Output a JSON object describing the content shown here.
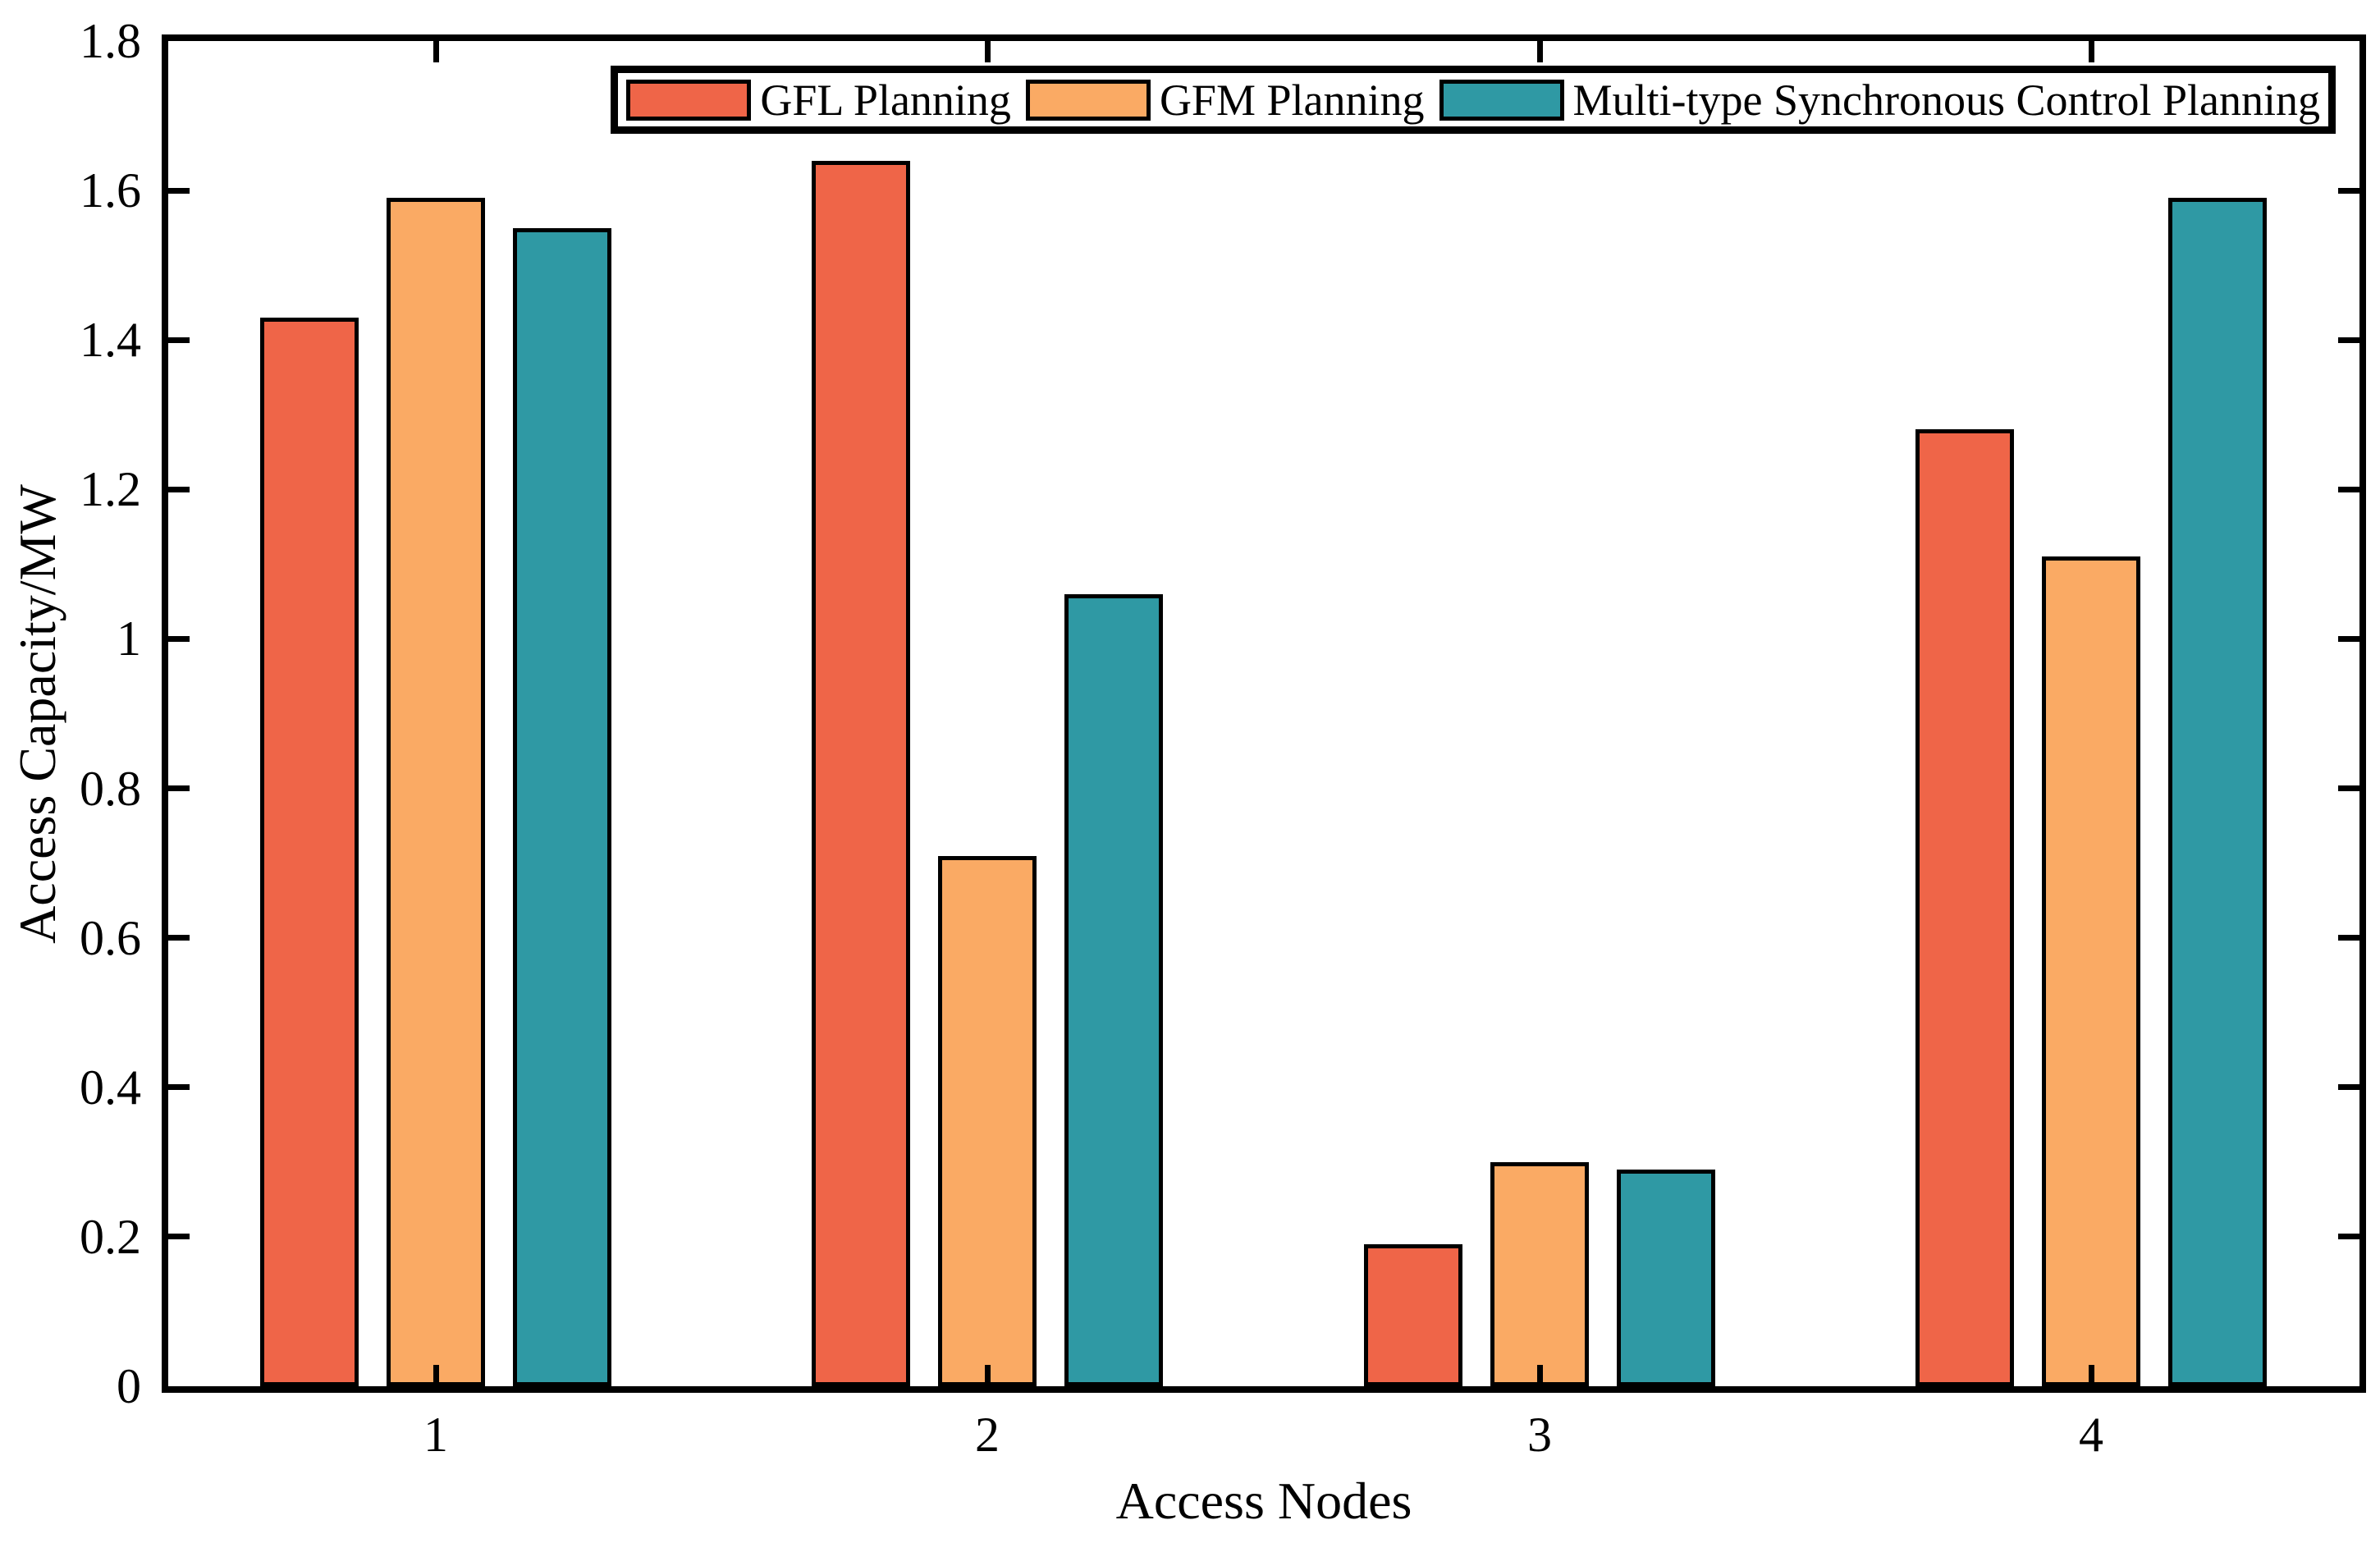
{
  "chart_data": {
    "type": "bar",
    "title": "",
    "xlabel": "Access Nodes",
    "ylabel": "Access Capacity/MW",
    "categories": [
      "1",
      "2",
      "3",
      "4"
    ],
    "series": [
      {
        "name": "GFL Planning",
        "color": "#EF6548",
        "values": [
          1.43,
          1.64,
          0.19,
          1.28
        ]
      },
      {
        "name": "GFM Planning",
        "color": "#FAAA64",
        "values": [
          1.59,
          0.71,
          0.3,
          1.11
        ]
      },
      {
        "name": "Multi-type Synchronous Control Planning",
        "color": "#2F99A4",
        "values": [
          1.55,
          1.06,
          0.29,
          1.59
        ]
      }
    ],
    "ylim": [
      0,
      1.8
    ],
    "y_ticks": [
      0,
      0.2,
      0.4,
      0.6,
      0.8,
      1,
      1.2,
      1.4,
      1.6,
      1.8
    ],
    "y_tick_labels": [
      "0",
      "0.2",
      "0.4",
      "0.6",
      "0.8",
      "1",
      "1.2",
      "1.4",
      "1.6",
      "1.8"
    ],
    "grid": false,
    "background": "#ffffff",
    "axis_color": "#000000",
    "bar_edge_color": "#000000",
    "legend_position": "top-right-inside"
  }
}
